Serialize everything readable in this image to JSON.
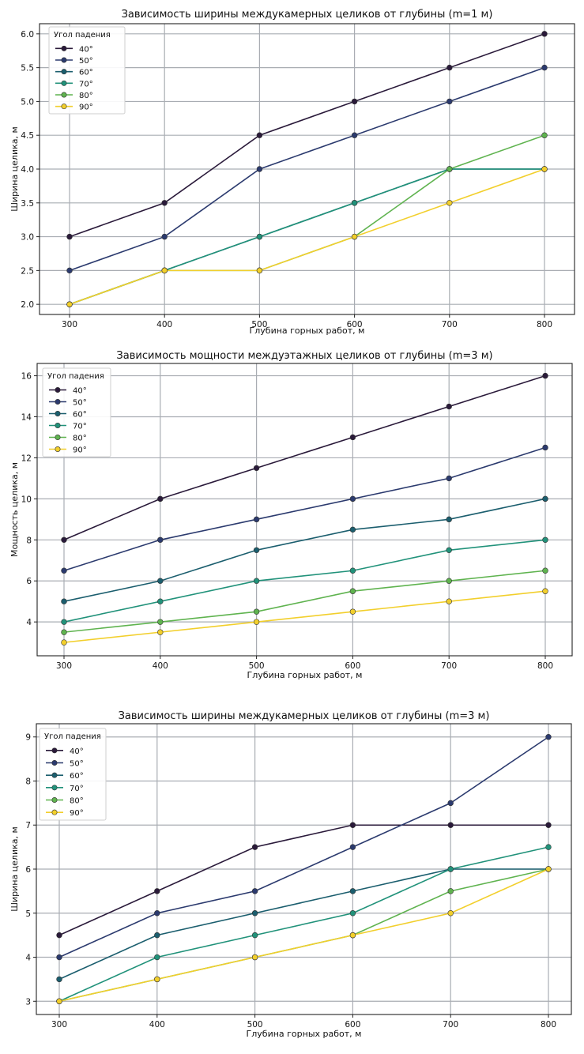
{
  "chart_data": [
    {
      "type": "line",
      "title": "Зависимость ширины междукамерных целиков от глубины (m=1 м)",
      "xlabel": "Глубина горных работ, м",
      "ylabel": "Ширина целика, м",
      "x": [
        300,
        400,
        500,
        600,
        700,
        800
      ],
      "x_ticks": [
        "300",
        "400",
        "500",
        "600",
        "700",
        "800"
      ],
      "ylim": [
        1.85,
        6.15
      ],
      "y_tick_values": [
        2.0,
        2.5,
        3.0,
        3.5,
        4.0,
        4.5,
        5.0,
        5.5,
        6.0
      ],
      "y_ticks": [
        "2.0",
        "2.5",
        "3.0",
        "3.5",
        "4.0",
        "4.5",
        "5.0",
        "5.5",
        "6.0"
      ],
      "grid": true,
      "legend_title": "Угол падения",
      "legend_position": "top-left",
      "series": [
        {
          "name": "40°",
          "color": "#2a1a3a",
          "values": [
            3.0,
            3.5,
            4.5,
            5.0,
            5.5,
            6.0
          ]
        },
        {
          "name": "50°",
          "color": "#2b3a6e",
          "values": [
            2.5,
            3.0,
            4.0,
            4.5,
            5.0,
            5.5
          ]
        },
        {
          "name": "60°",
          "color": "#1b5e6e",
          "values": [
            2.0,
            2.5,
            3.0,
            3.5,
            4.0,
            4.0
          ]
        },
        {
          "name": "70°",
          "color": "#21927a",
          "values": [
            2.0,
            2.5,
            3.0,
            3.5,
            4.0,
            4.0
          ]
        },
        {
          "name": "80°",
          "color": "#5fb34f",
          "values": [
            2.0,
            2.5,
            2.5,
            3.0,
            4.0,
            4.5
          ]
        },
        {
          "name": "90°",
          "color": "#f2cf2c",
          "values": [
            2.0,
            2.5,
            2.5,
            3.0,
            3.5,
            4.0
          ]
        }
      ]
    },
    {
      "type": "line",
      "title": "Зависимость мощности междуэтажных целиков от глубины (m=3 м)",
      "xlabel": "Глубина горных работ, м",
      "ylabel": "Мощность целика, м",
      "x": [
        300,
        400,
        500,
        600,
        700,
        800
      ],
      "x_ticks": [
        "300",
        "400",
        "500",
        "600",
        "700",
        "800"
      ],
      "ylim": [
        2.35,
        16.6
      ],
      "y_tick_values": [
        4,
        6,
        8,
        10,
        12,
        14,
        16
      ],
      "y_ticks": [
        "4",
        "6",
        "8",
        "10",
        "12",
        "14",
        "16"
      ],
      "grid": true,
      "legend_title": "Угол падения",
      "legend_position": "top-left",
      "series": [
        {
          "name": "40°",
          "color": "#2a1a3a",
          "values": [
            8,
            10,
            11.5,
            13,
            14.5,
            16
          ]
        },
        {
          "name": "50°",
          "color": "#2b3a6e",
          "values": [
            6.5,
            8,
            9,
            10,
            11,
            12.5
          ]
        },
        {
          "name": "60°",
          "color": "#1b5e6e",
          "values": [
            5,
            6,
            7.5,
            8.5,
            9,
            10
          ]
        },
        {
          "name": "70°",
          "color": "#21927a",
          "values": [
            4,
            5,
            6,
            6.5,
            7.5,
            8
          ]
        },
        {
          "name": "80°",
          "color": "#5fb34f",
          "values": [
            3.5,
            4,
            4.5,
            5.5,
            6,
            6.5
          ]
        },
        {
          "name": "90°",
          "color": "#f2cf2c",
          "values": [
            3,
            3.5,
            4,
            4.5,
            5,
            5.5
          ]
        }
      ]
    },
    {
      "type": "line",
      "title": "Зависимость ширины междукамерных целиков от глубины (m=3 м)",
      "xlabel": "Глубина горных работ, м",
      "ylabel": "Ширина целика, м",
      "x": [
        300,
        400,
        500,
        600,
        700,
        800
      ],
      "x_ticks": [
        "300",
        "400",
        "500",
        "600",
        "700",
        "800"
      ],
      "ylim": [
        2.7,
        9.3
      ],
      "y_tick_values": [
        3,
        4,
        5,
        6,
        7,
        8,
        9
      ],
      "y_ticks": [
        "3",
        "4",
        "5",
        "6",
        "7",
        "8",
        "9"
      ],
      "grid": true,
      "legend_title": "Угол падения",
      "legend_position": "top-left",
      "series": [
        {
          "name": "40°",
          "color": "#2a1a3a",
          "values": [
            4.5,
            5.5,
            6.5,
            7,
            7,
            7
          ]
        },
        {
          "name": "50°",
          "color": "#2b3a6e",
          "values": [
            4,
            5,
            5.5,
            6.5,
            7.5,
            9
          ]
        },
        {
          "name": "60°",
          "color": "#1b5e6e",
          "values": [
            3.5,
            4.5,
            5,
            5.5,
            6,
            6
          ]
        },
        {
          "name": "70°",
          "color": "#21927a",
          "values": [
            3,
            4,
            4.5,
            5,
            6,
            6.5
          ]
        },
        {
          "name": "80°",
          "color": "#5fb34f",
          "values": [
            3,
            3.5,
            4,
            4.5,
            5.5,
            6
          ]
        },
        {
          "name": "90°",
          "color": "#f2cf2c",
          "values": [
            3,
            3.5,
            4,
            4.5,
            5,
            6
          ]
        }
      ]
    }
  ]
}
